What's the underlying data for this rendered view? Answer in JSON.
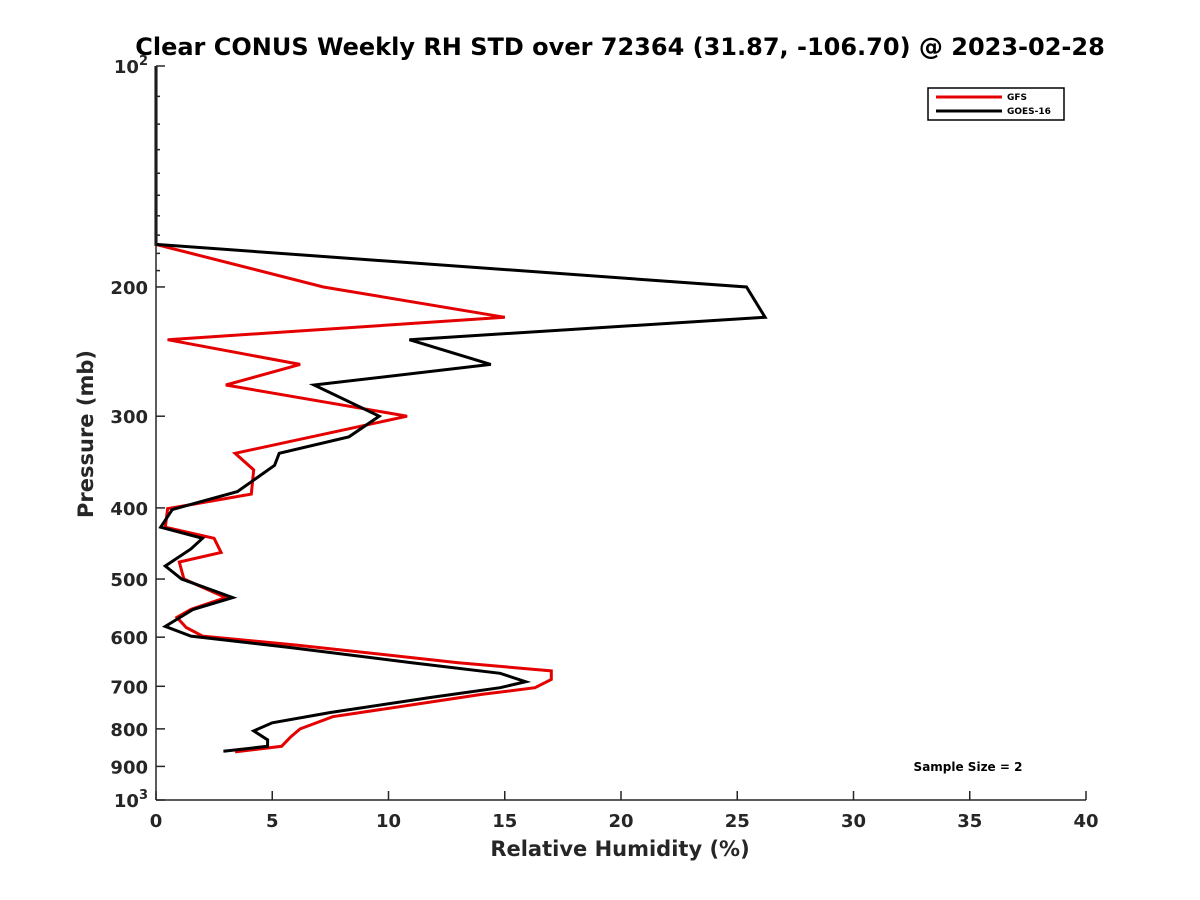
{
  "chart_data": {
    "type": "line",
    "title": "Clear CONUS Weekly RH STD over 72364 (31.87, -106.70) @ 2023-02-28",
    "xlabel": "Relative Humidity (%)",
    "ylabel": "Pressure (mb)",
    "xlim": [
      0,
      40
    ],
    "ylim": [
      100,
      1000
    ],
    "y_scale": "log",
    "y_reversed": true,
    "x_ticks": [
      "0",
      "5",
      "10",
      "15",
      "20",
      "25",
      "30",
      "35",
      "40"
    ],
    "y_ticks": [
      {
        "value": 100,
        "base": "10",
        "exp": "2"
      },
      {
        "value": 200,
        "label": "200"
      },
      {
        "value": 300,
        "label": "300"
      },
      {
        "value": 400,
        "label": "400"
      },
      {
        "value": 500,
        "label": "500"
      },
      {
        "value": 600,
        "label": "600"
      },
      {
        "value": 700,
        "label": "700"
      },
      {
        "value": 800,
        "label": "800"
      },
      {
        "value": 900,
        "label": "900"
      },
      {
        "value": 1000,
        "base": "10",
        "exp": "3"
      }
    ],
    "legend_position": "top-right",
    "annotation": "Sample Size = 2",
    "series": [
      {
        "name": "GFS",
        "color": "#e50000",
        "points": [
          [
            0,
            100
          ],
          [
            0,
            175
          ],
          [
            7.2,
            200
          ],
          [
            15.0,
            220
          ],
          [
            0.5,
            236
          ],
          [
            6.2,
            255
          ],
          [
            3.0,
            272
          ],
          [
            10.8,
            300
          ],
          [
            3.4,
            337
          ],
          [
            4.2,
            355
          ],
          [
            4.1,
            383
          ],
          [
            0.5,
            401
          ],
          [
            0.4,
            425
          ],
          [
            2.5,
            440
          ],
          [
            2.8,
            460
          ],
          [
            1.0,
            474
          ],
          [
            1.2,
            500
          ],
          [
            3.0,
            530
          ],
          [
            1.5,
            550
          ],
          [
            0.9,
            564
          ],
          [
            1.3,
            582
          ],
          [
            2.0,
            598
          ],
          [
            6.0,
            615
          ],
          [
            13.0,
            650
          ],
          [
            17.0,
            667
          ],
          [
            17.0,
            685
          ],
          [
            16.3,
            703
          ],
          [
            14.0,
            718
          ],
          [
            7.6,
            770
          ],
          [
            6.2,
            800
          ],
          [
            5.8,
            820
          ],
          [
            5.4,
            845
          ],
          [
            3.4,
            860
          ]
        ]
      },
      {
        "name": "GOES-16",
        "color": "#000000",
        "points": [
          [
            0,
            100
          ],
          [
            0,
            175
          ],
          [
            25.4,
            200
          ],
          [
            26.2,
            220
          ],
          [
            10.9,
            236
          ],
          [
            14.4,
            255
          ],
          [
            6.8,
            272
          ],
          [
            9.6,
            300
          ],
          [
            8.3,
            320
          ],
          [
            5.3,
            337
          ],
          [
            5.1,
            350
          ],
          [
            3.5,
            380
          ],
          [
            0.7,
            402
          ],
          [
            0.2,
            425
          ],
          [
            2.0,
            440
          ],
          [
            1.5,
            455
          ],
          [
            0.4,
            480
          ],
          [
            1.1,
            500
          ],
          [
            3.3,
            530
          ],
          [
            1.6,
            550
          ],
          [
            0.4,
            580
          ],
          [
            1.5,
            598
          ],
          [
            5.8,
            620
          ],
          [
            11.0,
            650
          ],
          [
            14.8,
            672
          ],
          [
            15.9,
            690
          ],
          [
            14.8,
            703
          ],
          [
            11.8,
            725
          ],
          [
            7.5,
            760
          ],
          [
            5.0,
            785
          ],
          [
            4.2,
            805
          ],
          [
            4.8,
            828
          ],
          [
            4.8,
            845
          ],
          [
            2.9,
            858
          ]
        ]
      }
    ]
  }
}
